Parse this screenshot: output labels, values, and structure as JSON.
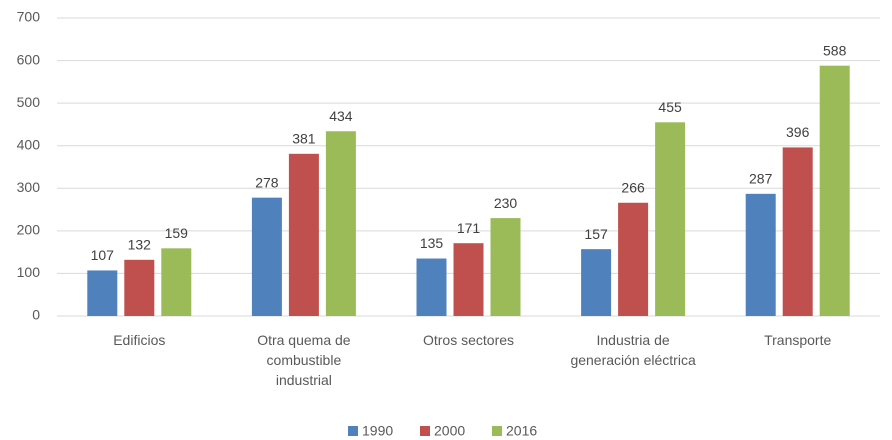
{
  "chart_data": {
    "type": "bar",
    "categories": [
      "Edificios",
      "Otra quema de\ncombustible\nindustrial",
      "Otros sectores",
      "Industria de\ngeneración eléctrica",
      "Transporte"
    ],
    "series": [
      {
        "name": "1990",
        "color": "#4f81bd",
        "values": [
          107,
          278,
          135,
          157,
          287
        ]
      },
      {
        "name": "2000",
        "color": "#c0504d",
        "values": [
          132,
          381,
          171,
          266,
          396
        ]
      },
      {
        "name": "2016",
        "color": "#9bbb59",
        "values": [
          159,
          434,
          230,
          455,
          588
        ]
      }
    ],
    "ylim": [
      0,
      700
    ],
    "yticks": [
      0,
      100,
      200,
      300,
      400,
      500,
      600,
      700
    ],
    "grid": true,
    "legend": "bottom"
  }
}
